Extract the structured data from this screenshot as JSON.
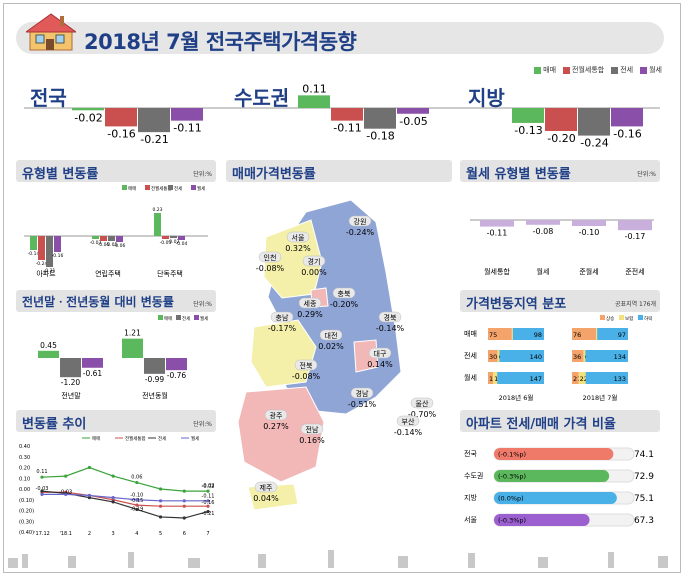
{
  "title": "2018년 7월 전국주택가격동향",
  "legend": [
    "매매",
    "전월세통합",
    "전세",
    "월세"
  ],
  "colors": {
    "sale": "#5cb85c",
    "total": "#c9504f",
    "jeonse": "#707070",
    "wolse": "#8a4fa8",
    "map_blue": "#8fa5d6",
    "map_yellow": "#f4f0a9",
    "map_pink": "#f2b8b8",
    "pill": "#e9e9e9",
    "title_color": "#1f3f86"
  },
  "top_regions": [
    {
      "name": "전국",
      "values": [
        "-0.02",
        "-0.16",
        "-0.21",
        "-0.11"
      ]
    },
    {
      "name": "수도권",
      "values": [
        "0.11",
        "-0.11",
        "-0.18",
        "-0.05"
      ]
    },
    {
      "name": "지방",
      "values": [
        "-0.13",
        "-0.20",
        "-0.24",
        "-0.16"
      ]
    }
  ],
  "panels": {
    "type_change": {
      "title": "유형별 변동률",
      "unit": "단위:%"
    },
    "yoy": {
      "title": "전년말ㆍ전년동월 대비 변동률",
      "unit": "단위:%"
    },
    "trend": {
      "title": "변동률 추이",
      "unit": "단위:%"
    },
    "map": {
      "title": "매매가격변동률"
    },
    "wolse_type": {
      "title": "월세 유형별 변동률",
      "unit": "단위:%"
    },
    "dist": {
      "title": "가격변동지역 분포",
      "unit": "공표지역 176개",
      "legend": [
        "상승",
        "보합",
        "하락"
      ]
    },
    "ratio": {
      "title": "아파트 전세/매매 가격 비율"
    }
  },
  "chart_data": [
    {
      "type": "bar",
      "title": "유형별 변동률",
      "categories": [
        "아파트",
        "연립주택",
        "단독주택"
      ],
      "series": [
        {
          "name": "매매",
          "values": [
            -0.14,
            -0.03,
            0.23
          ]
        },
        {
          "name": "전월세통합",
          "values": [
            -0.24,
            -0.05,
            -0.03
          ]
        },
        {
          "name": "전세",
          "values": [
            -0.31,
            -0.05,
            -0.02
          ]
        },
        {
          "name": "월세",
          "values": [
            -0.16,
            -0.06,
            -0.04
          ]
        }
      ],
      "labels": [
        [
          "-0.14",
          "-0.24",
          "-0.31",
          "-0.16"
        ],
        [
          "-0.03",
          "-0.05",
          "-0.05",
          "-0.06"
        ],
        [
          "0.23",
          "-0.03",
          "-0.02",
          "-0.04"
        ]
      ]
    },
    {
      "type": "bar",
      "title": "전년말ㆍ전년동월 대비 변동률",
      "categories": [
        "전년말",
        "전년동월"
      ],
      "series": [
        {
          "name": "매매",
          "values": [
            0.45,
            1.21
          ]
        },
        {
          "name": "전세",
          "values": [
            -1.2,
            -0.99
          ]
        },
        {
          "name": "월세",
          "values": [
            -0.61,
            -0.76
          ]
        }
      ]
    },
    {
      "type": "line",
      "title": "변동률 추이",
      "x": [
        "'17.12",
        "'18.1",
        "2",
        "3",
        "4",
        "5",
        "6",
        "7"
      ],
      "ylim": [
        -0.4,
        0.4
      ],
      "yticks": [
        "0.40",
        "0.30",
        "0.20",
        "0.10",
        "0.00",
        "(0.10)",
        "(0.20)",
        "(0.30)",
        "(0.40)"
      ],
      "series": [
        {
          "name": "매매",
          "values": [
            0.11,
            0.12,
            0.2,
            0.12,
            0.06,
            0.0,
            -0.02,
            -0.02
          ]
        },
        {
          "name": "전월세통합",
          "values": [
            -0.03,
            -0.03,
            -0.06,
            -0.1,
            -0.15,
            -0.16,
            -0.16,
            -0.16
          ]
        },
        {
          "name": "전세",
          "values": [
            -0.02,
            -0.04,
            -0.08,
            -0.12,
            -0.19,
            -0.26,
            -0.27,
            -0.21
          ]
        },
        {
          "name": "월세",
          "values": [
            -0.05,
            -0.05,
            -0.06,
            -0.08,
            -0.1,
            -0.11,
            -0.11,
            -0.11
          ]
        }
      ],
      "data_labels": [
        "0.11",
        "0.06",
        "-0.02",
        "-0.03",
        "-0.02",
        "-0.03",
        "-0.10",
        "-0.15",
        "-0.11",
        "-0.19",
        "-0.16",
        "-0.21"
      ]
    },
    {
      "type": "bar",
      "title": "월세 유형별 변동률",
      "categories": [
        "월세통합",
        "월세",
        "준월세",
        "준전세"
      ],
      "values": [
        -0.11,
        -0.08,
        -0.1,
        -0.17
      ]
    },
    {
      "type": "table",
      "title": "가격변동지역 분포",
      "columns": [
        "2018년 6월",
        "2018년 7월"
      ],
      "rows": [
        {
          "name": "매매",
          "jun": [
            75,
            3,
            98
          ],
          "jul": [
            76,
            3,
            97
          ]
        },
        {
          "name": "전세",
          "jun": [
            30,
            6,
            140
          ],
          "jul": [
            36,
            6,
            134
          ]
        },
        {
          "name": "월세",
          "jun": [
            16,
            13,
            147
          ],
          "jul": [
            21,
            22,
            133
          ]
        }
      ]
    },
    {
      "type": "bar",
      "title": "아파트 전세/매매 가격 비율",
      "categories": [
        "전국",
        "수도권",
        "지방",
        "서울"
      ],
      "values": [
        74.1,
        72.9,
        75.1,
        67.3
      ],
      "changes": [
        "(-0.1%p)",
        "(-0.3%p)",
        "(0.0%p)",
        "(-0.3%p)"
      ],
      "colors": [
        "#f07a6a",
        "#5cb85c",
        "#4ab0e8",
        "#9b5fd0"
      ]
    }
  ],
  "map_regions": [
    {
      "name": "서울",
      "value": "0.32%"
    },
    {
      "name": "강원",
      "value": "-0.24%"
    },
    {
      "name": "인천",
      "value": "-0.08%"
    },
    {
      "name": "경기",
      "value": "0.00%"
    },
    {
      "name": "세종",
      "value": "0.29%"
    },
    {
      "name": "충북",
      "value": "-0.20%"
    },
    {
      "name": "충남",
      "value": "-0.17%"
    },
    {
      "name": "대전",
      "value": "0.02%"
    },
    {
      "name": "경북",
      "value": "-0.14%"
    },
    {
      "name": "전북",
      "value": "-0.08%"
    },
    {
      "name": "대구",
      "value": "0.14%"
    },
    {
      "name": "울산",
      "value": "-0.70%"
    },
    {
      "name": "경남",
      "value": "-0.51%"
    },
    {
      "name": "부산",
      "value": "-0.14%"
    },
    {
      "name": "광주",
      "value": "0.27%"
    },
    {
      "name": "전남",
      "value": "0.16%"
    },
    {
      "name": "제주",
      "value": "0.04%"
    }
  ]
}
